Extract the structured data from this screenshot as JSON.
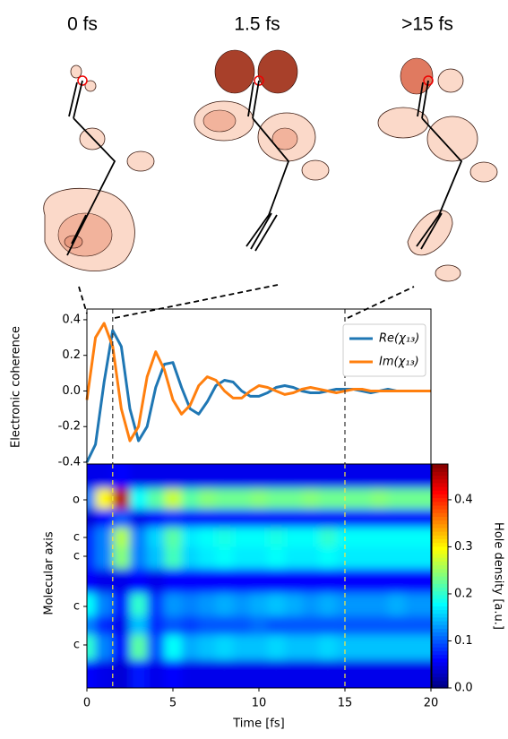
{
  "snapshots": [
    "0 fs",
    "1.5 fs",
    ">15 fs"
  ],
  "chart_data": [
    {
      "type": "line",
      "ylabel": "Electronic coherence",
      "legend": "upper right",
      "x": [
        0,
        0.5,
        1,
        1.5,
        2,
        2.5,
        3,
        3.5,
        4,
        4.5,
        5,
        5.5,
        6,
        6.5,
        7,
        7.5,
        8,
        8.5,
        9,
        9.5,
        10,
        10.5,
        11,
        11.5,
        12,
        12.5,
        13,
        13.5,
        14,
        14.5,
        15,
        15.5,
        16,
        16.5,
        17,
        17.5,
        18,
        18.5,
        19,
        19.5,
        20
      ],
      "series": [
        {
          "name": "Re(χ₁₃)",
          "color": "#1f77b4",
          "values": [
            -0.4,
            -0.3,
            0.05,
            0.34,
            0.25,
            -0.1,
            -0.28,
            -0.2,
            0.02,
            0.15,
            0.16,
            0.02,
            -0.1,
            -0.13,
            -0.06,
            0.03,
            0.06,
            0.05,
            0.0,
            -0.03,
            -0.03,
            -0.01,
            0.02,
            0.03,
            0.02,
            0.0,
            -0.01,
            -0.01,
            0.0,
            0.01,
            0.01,
            0.01,
            0.0,
            -0.01,
            0.0,
            0.01,
            0.0,
            0.0,
            0.0,
            0.0,
            0.0
          ]
        },
        {
          "name": "Im(χ₁₃)",
          "color": "#ff7f0e",
          "values": [
            -0.05,
            0.3,
            0.38,
            0.25,
            -0.1,
            -0.28,
            -0.2,
            0.08,
            0.22,
            0.12,
            -0.05,
            -0.13,
            -0.08,
            0.03,
            0.08,
            0.06,
            0.0,
            -0.04,
            -0.04,
            0.0,
            0.03,
            0.02,
            0.0,
            -0.02,
            -0.01,
            0.01,
            0.02,
            0.01,
            0.0,
            -0.01,
            0.0,
            0.01,
            0.01,
            0.0,
            0.0,
            0.0,
            0.0,
            0.0,
            0.0,
            0.0,
            0.0
          ]
        }
      ],
      "xlim": [
        0,
        20
      ],
      "ylim": [
        -0.41,
        0.46
      ],
      "yticks": [
        -0.4,
        -0.2,
        {
          "value": 0,
          "label": "0.0"
        },
        0.2,
        0.4
      ],
      "vlines": [
        1.5,
        15
      ],
      "vline_color": "#333333"
    },
    {
      "type": "heatmap",
      "xlabel": "Time [fs]",
      "ylabel": "Molecular axis",
      "colorbar_label": "Hole density [a.u.]",
      "colormap": "jet",
      "x": [
        0,
        1,
        2,
        3,
        4,
        5,
        6,
        7,
        8,
        9,
        10,
        11,
        12,
        13,
        14,
        15,
        16,
        17,
        18,
        19,
        20
      ],
      "y": [
        1.5,
        4,
        6,
        8.2,
        10.3,
        13,
        15.9,
        18,
        20.2,
        23.5
      ],
      "z": [
        [
          0.05,
          0.05,
          0.06,
          0.05,
          0.05,
          0.05,
          0.05,
          0.05,
          0.05,
          0.05,
          0.05,
          0.05,
          0.05,
          0.05,
          0.05,
          0.05,
          0.05,
          0.05,
          0.05,
          0.05,
          0.05
        ],
        [
          0.12,
          0.3,
          0.45,
          0.18,
          0.22,
          0.27,
          0.22,
          0.24,
          0.23,
          0.23,
          0.24,
          0.23,
          0.23,
          0.24,
          0.23,
          0.23,
          0.23,
          0.24,
          0.23,
          0.23,
          0.23
        ],
        [
          0.04,
          0.06,
          0.1,
          0.05,
          0.06,
          0.08,
          0.07,
          0.07,
          0.07,
          0.07,
          0.07,
          0.07,
          0.07,
          0.07,
          0.07,
          0.07,
          0.07,
          0.07,
          0.07,
          0.07,
          0.07
        ],
        [
          0.08,
          0.12,
          0.26,
          0.12,
          0.16,
          0.22,
          0.17,
          0.18,
          0.19,
          0.18,
          0.18,
          0.19,
          0.18,
          0.18,
          0.2,
          0.18,
          0.18,
          0.18,
          0.18,
          0.18,
          0.18
        ],
        [
          0.08,
          0.12,
          0.24,
          0.12,
          0.15,
          0.21,
          0.16,
          0.17,
          0.18,
          0.17,
          0.17,
          0.18,
          0.17,
          0.17,
          0.18,
          0.17,
          0.17,
          0.17,
          0.17,
          0.17,
          0.17
        ],
        [
          0.06,
          0.05,
          0.05,
          0.06,
          0.05,
          0.06,
          0.06,
          0.06,
          0.06,
          0.06,
          0.06,
          0.06,
          0.06,
          0.06,
          0.06,
          0.06,
          0.06,
          0.06,
          0.06,
          0.06,
          0.06
        ],
        [
          0.18,
          0.12,
          0.07,
          0.2,
          0.09,
          0.13,
          0.12,
          0.13,
          0.14,
          0.13,
          0.14,
          0.15,
          0.14,
          0.13,
          0.14,
          0.13,
          0.13,
          0.13,
          0.14,
          0.13,
          0.13
        ],
        [
          0.12,
          0.08,
          0.05,
          0.15,
          0.08,
          0.1,
          0.09,
          0.1,
          0.1,
          0.1,
          0.11,
          0.1,
          0.1,
          0.1,
          0.1,
          0.1,
          0.1,
          0.1,
          0.1,
          0.1,
          0.1
        ],
        [
          0.2,
          0.12,
          0.06,
          0.22,
          0.1,
          0.18,
          0.14,
          0.15,
          0.16,
          0.15,
          0.15,
          0.16,
          0.15,
          0.15,
          0.16,
          0.15,
          0.15,
          0.15,
          0.15,
          0.15,
          0.15
        ],
        [
          0.06,
          0.05,
          0.04,
          0.07,
          0.05,
          0.06,
          0.05,
          0.05,
          0.05,
          0.05,
          0.05,
          0.05,
          0.05,
          0.05,
          0.05,
          0.05,
          0.05,
          0.05,
          0.05,
          0.05,
          0.05
        ]
      ],
      "xlim": [
        0,
        20
      ],
      "ylim": [
        25,
        0
      ],
      "zlim": [
        0,
        0.476
      ],
      "xticks": [
        0,
        5,
        10,
        15,
        20
      ],
      "yticks": [
        {
          "value": 4,
          "label": "o"
        },
        {
          "value": 8.2,
          "label": "c"
        },
        {
          "value": 10.3,
          "label": "c"
        },
        {
          "value": 15.9,
          "label": "c"
        },
        {
          "value": 20.2,
          "label": "c"
        }
      ],
      "cticks": [
        {
          "value": 0,
          "label": "0.0"
        },
        0.1,
        0.2,
        0.3,
        0.4
      ],
      "vlines": [
        1.5,
        15
      ],
      "vline_color": "#f5e642"
    }
  ]
}
